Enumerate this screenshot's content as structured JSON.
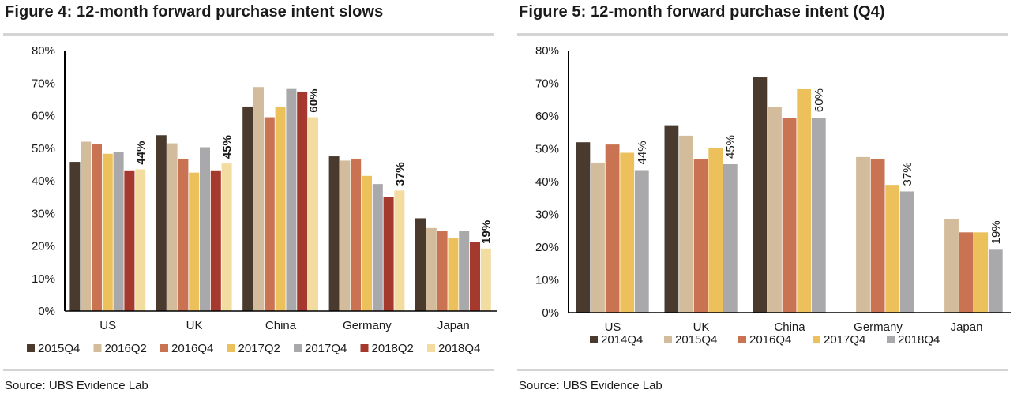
{
  "colors": {
    "2014Q4": "#4a3a2e",
    "2015Q4": "#4a3a2e",
    "2016Q2": "#d3bc9b",
    "2016Q4": "#c97353",
    "2017Q2": "#ecc15c",
    "2017Q4": "#a9a9ab",
    "2018Q2": "#a6392e",
    "2018Q4": "#f2dc9f"
  },
  "figures": [
    {
      "title": "Figure 4: 12-month forward purchase intent slows",
      "source": "Source:  UBS Evidence Lab",
      "chart_data": {
        "type": "bar",
        "ylim": [
          0,
          80
        ],
        "yticks": [
          "0%",
          "10%",
          "20%",
          "30%",
          "40%",
          "50%",
          "60%",
          "70%",
          "80%"
        ],
        "categories": [
          "US",
          "UK",
          "China",
          "Germany",
          "Japan"
        ],
        "series": [
          {
            "name": "2015Q4",
            "color": "#4a3a2e",
            "values": [
              45.8,
              54,
              62.8,
              47.5,
              28.5
            ]
          },
          {
            "name": "2016Q2",
            "color": "#d3bc9b",
            "values": [
              52,
              51.5,
              68.8,
              46.2,
              25.5
            ]
          },
          {
            "name": "2016Q4",
            "color": "#c97353",
            "values": [
              51.3,
              46.8,
              59.5,
              46.8,
              24.5
            ]
          },
          {
            "name": "2017Q2",
            "color": "#ecc15c",
            "values": [
              48.3,
              42.5,
              62.8,
              41.5,
              22.3
            ]
          },
          {
            "name": "2017Q4",
            "color": "#a9a9ab",
            "values": [
              48.8,
              50.3,
              68.2,
              39,
              24.5
            ]
          },
          {
            "name": "2018Q2",
            "color": "#a6392e",
            "values": [
              43.2,
              43.2,
              67.3,
              35,
              21.3
            ]
          },
          {
            "name": "2018Q4",
            "color": "#f2dc9f",
            "values": [
              43.5,
              45.3,
              59.5,
              37,
              19.2
            ]
          }
        ],
        "data_labels": [
          "44%",
          "45%",
          "60%",
          "37%",
          "19%"
        ],
        "data_label_style": "bold",
        "legend_position": "bottom"
      }
    },
    {
      "title": "Figure 5: 12-month forward purchase intent (Q4)",
      "source": "Source:  UBS Evidence Lab",
      "chart_data": {
        "type": "bar",
        "ylim": [
          0,
          80
        ],
        "yticks": [
          "0%",
          "10%",
          "20%",
          "30%",
          "40%",
          "50%",
          "60%",
          "70%",
          "80%"
        ],
        "categories": [
          "US",
          "UK",
          "China",
          "Germany",
          "Japan"
        ],
        "series": [
          {
            "name": "2014Q4",
            "color": "#4a3a2e",
            "values": [
              52,
              57.2,
              71.8,
              null,
              null
            ]
          },
          {
            "name": "2015Q4",
            "color": "#d3bc9b",
            "values": [
              45.8,
              54,
              62.8,
              47.5,
              28.5
            ]
          },
          {
            "name": "2016Q4",
            "color": "#c97353",
            "values": [
              51.3,
              46.8,
              59.5,
              46.8,
              24.5
            ]
          },
          {
            "name": "2017Q4",
            "color": "#ecc15c",
            "values": [
              48.8,
              50.3,
              68.2,
              39,
              24.5
            ]
          },
          {
            "name": "2018Q4",
            "color": "#a9a9ab",
            "values": [
              43.5,
              45.3,
              59.5,
              37,
              19.2
            ]
          }
        ],
        "data_labels": [
          "44%",
          "45%",
          "60%",
          "37%",
          "19%"
        ],
        "data_label_style": "normal",
        "legend_position": "bottom"
      }
    }
  ]
}
